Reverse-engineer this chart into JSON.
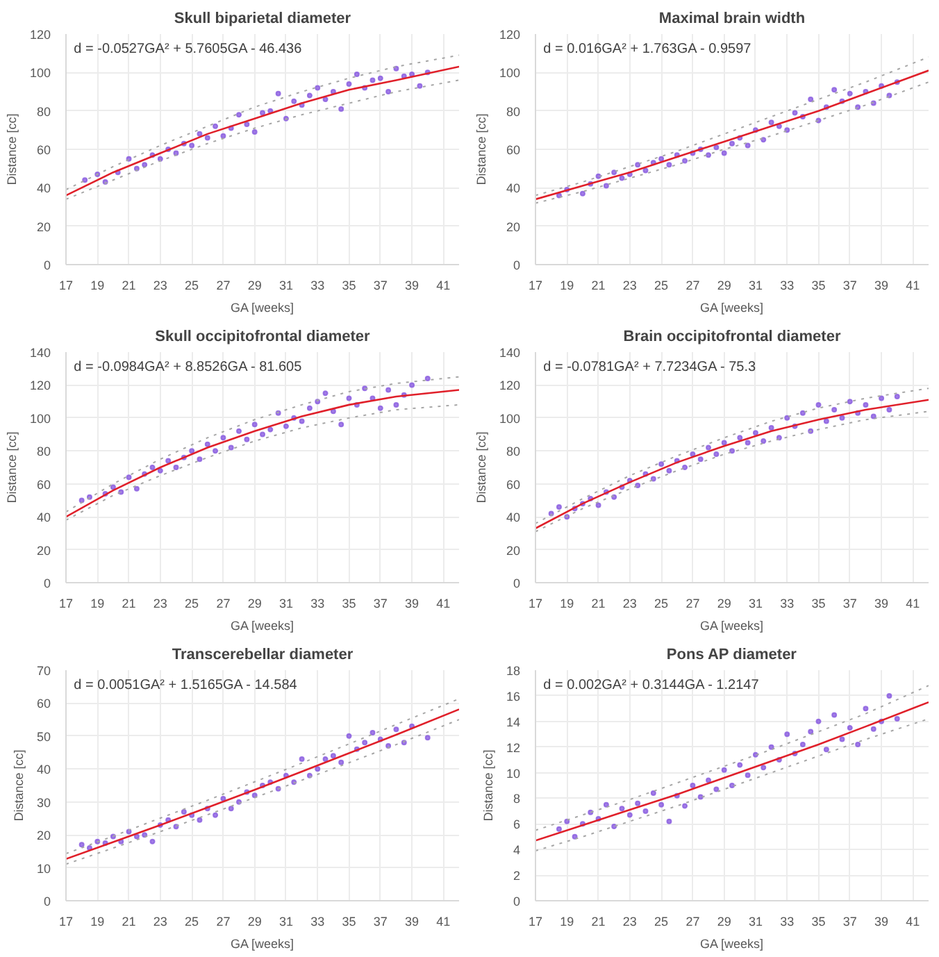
{
  "chart_data": [
    {
      "type": "scatter",
      "title": "Skull biparietal diameter",
      "xlabel": "GA [weeks]",
      "ylabel": "Distance [cc]",
      "annotations": [
        "d = -0.0527GA² + 5.7605GA - 46.436"
      ],
      "xlim": [
        17,
        42
      ],
      "xticks": [
        17,
        19,
        21,
        23,
        25,
        27,
        29,
        31,
        33,
        35,
        37,
        39,
        41
      ],
      "ylim": [
        0,
        120
      ],
      "yticks": [
        0,
        20,
        40,
        60,
        80,
        100,
        120
      ],
      "grid": true,
      "series": [
        {
          "marker": "circle",
          "color": "#8a5ce0",
          "x": [
            18.2,
            19,
            19.5,
            20.3,
            21,
            21.5,
            22,
            22.5,
            23,
            23.5,
            24,
            24.5,
            25,
            25.5,
            26,
            26.5,
            27,
            27.5,
            28,
            28.5,
            29,
            29.5,
            30,
            30.5,
            31,
            31.5,
            32,
            32.5,
            33,
            33.5,
            34,
            34.5,
            35,
            35.5,
            36,
            36.5,
            37,
            37.5,
            38,
            38.5,
            39,
            39.5,
            40
          ],
          "values": [
            44,
            47,
            43,
            48,
            55,
            50,
            52,
            57,
            55,
            60,
            58,
            63,
            62,
            68,
            66,
            72,
            67,
            71,
            78,
            73,
            69,
            79,
            80,
            89,
            76,
            85,
            83,
            88,
            92,
            86,
            90,
            81,
            94,
            99,
            92,
            96,
            97,
            90,
            102,
            98,
            99,
            93,
            100
          ]
        },
        {
          "type": "line",
          "marker": "none",
          "color": "#e0202a",
          "line_style": "solid",
          "x": [
            17,
            20,
            23,
            26,
            29,
            32,
            35,
            38,
            42
          ],
          "values": [
            36,
            48,
            58,
            68,
            76,
            84,
            91,
            96,
            103
          ]
        },
        {
          "type": "line",
          "marker": "none",
          "color": "#a6a6a6",
          "line_style": "dotted",
          "x": [
            17,
            20,
            23,
            26,
            29,
            32,
            35,
            38,
            42
          ],
          "values": [
            39,
            51,
            62,
            72,
            82,
            90,
            97,
            103,
            109
          ]
        },
        {
          "type": "line",
          "marker": "none",
          "color": "#a6a6a6",
          "line_style": "dotted",
          "x": [
            17,
            20,
            23,
            26,
            29,
            32,
            35,
            38,
            42
          ],
          "values": [
            34,
            44,
            54,
            63,
            71,
            78,
            84,
            90,
            96
          ]
        }
      ]
    },
    {
      "type": "scatter",
      "title": "Maximal brain width",
      "xlabel": "GA [weeks]",
      "ylabel": "Distance [cc]",
      "annotations": [
        "d = 0.016GA² + 1.763GA - 0.9597"
      ],
      "xlim": [
        17,
        42
      ],
      "xticks": [
        17,
        19,
        21,
        23,
        25,
        27,
        29,
        31,
        33,
        35,
        37,
        39,
        41
      ],
      "ylim": [
        0,
        120
      ],
      "yticks": [
        0,
        20,
        40,
        60,
        80,
        100,
        120
      ],
      "grid": true,
      "series": [
        {
          "marker": "circle",
          "color": "#8a5ce0",
          "x": [
            18.5,
            19,
            20,
            20.5,
            21,
            21.5,
            22,
            22.5,
            23,
            23.5,
            24,
            24.5,
            25,
            25.5,
            26,
            26.5,
            27,
            27.5,
            28,
            28.5,
            29,
            29.5,
            30,
            30.5,
            31,
            31.5,
            32,
            32.5,
            33,
            33.5,
            34,
            34.5,
            35,
            35.5,
            36,
            36.5,
            37,
            37.5,
            38,
            38.5,
            39,
            39.5,
            40
          ],
          "values": [
            36,
            39,
            37,
            42,
            46,
            41,
            48,
            45,
            47,
            52,
            49,
            53,
            55,
            52,
            57,
            54,
            58,
            60,
            57,
            61,
            58,
            63,
            66,
            62,
            70,
            65,
            74,
            72,
            70,
            79,
            77,
            86,
            75,
            82,
            91,
            85,
            89,
            82,
            90,
            84,
            93,
            88,
            95
          ]
        },
        {
          "type": "line",
          "marker": "none",
          "color": "#e0202a",
          "line_style": "solid",
          "x": [
            17,
            20,
            23,
            26,
            29,
            32,
            35,
            38,
            42
          ],
          "values": [
            34,
            41,
            48,
            56,
            64,
            72,
            80,
            89,
            101
          ]
        },
        {
          "type": "line",
          "marker": "none",
          "color": "#a6a6a6",
          "line_style": "dotted",
          "x": [
            17,
            20,
            23,
            26,
            29,
            32,
            35,
            38,
            42
          ],
          "values": [
            36,
            43,
            51,
            59,
            68,
            77,
            86,
            95,
            108
          ]
        },
        {
          "type": "line",
          "marker": "none",
          "color": "#a6a6a6",
          "line_style": "dotted",
          "x": [
            17,
            20,
            23,
            26,
            29,
            32,
            35,
            38,
            42
          ],
          "values": [
            32,
            38,
            45,
            52,
            60,
            67,
            75,
            83,
            95
          ]
        }
      ]
    },
    {
      "type": "scatter",
      "title": "Skull occipitofrontal diameter",
      "xlabel": "GA [weeks]",
      "ylabel": "Distance [cc]",
      "annotations": [
        "d = -0.0984GA² + 8.8526GA - 81.605"
      ],
      "xlim": [
        17,
        42
      ],
      "xticks": [
        17,
        19,
        21,
        23,
        25,
        27,
        29,
        31,
        33,
        35,
        37,
        39,
        41
      ],
      "ylim": [
        0,
        140
      ],
      "yticks": [
        0,
        20,
        40,
        60,
        80,
        100,
        120,
        140
      ],
      "grid": true,
      "series": [
        {
          "marker": "circle",
          "color": "#8a5ce0",
          "x": [
            18,
            18.5,
            19.5,
            20,
            20.5,
            21,
            21.5,
            22,
            22.5,
            23,
            23.5,
            24,
            24.5,
            25,
            25.5,
            26,
            26.5,
            27,
            27.5,
            28,
            28.5,
            29,
            29.5,
            30,
            30.5,
            31,
            31.5,
            32,
            32.5,
            33,
            33.5,
            34,
            34.5,
            35,
            35.5,
            36,
            36.5,
            37,
            37.5,
            38,
            38.5,
            39,
            40
          ],
          "values": [
            50,
            52,
            54,
            58,
            55,
            64,
            57,
            66,
            70,
            68,
            74,
            70,
            76,
            80,
            75,
            84,
            80,
            88,
            82,
            92,
            87,
            96,
            90,
            93,
            103,
            95,
            100,
            98,
            106,
            110,
            115,
            104,
            96,
            112,
            108,
            118,
            112,
            106,
            117,
            108,
            114,
            120,
            124
          ]
        },
        {
          "type": "line",
          "marker": "none",
          "color": "#e0202a",
          "line_style": "solid",
          "x": [
            17,
            20,
            23,
            26,
            29,
            32,
            35,
            38,
            42
          ],
          "values": [
            40,
            56,
            70,
            82,
            92,
            101,
            108,
            113,
            117
          ]
        },
        {
          "type": "line",
          "marker": "none",
          "color": "#a6a6a6",
          "line_style": "dotted",
          "x": [
            17,
            20,
            23,
            26,
            29,
            32,
            35,
            38,
            42
          ],
          "values": [
            43,
            60,
            75,
            88,
            99,
            108,
            116,
            121,
            125
          ]
        },
        {
          "type": "line",
          "marker": "none",
          "color": "#a6a6a6",
          "line_style": "dotted",
          "x": [
            17,
            20,
            23,
            26,
            29,
            32,
            35,
            38,
            42
          ],
          "values": [
            38,
            53,
            65,
            76,
            86,
            94,
            100,
            105,
            108
          ]
        }
      ]
    },
    {
      "type": "scatter",
      "title": "Brain occipitofrontal diameter",
      "xlabel": "GA [weeks]",
      "ylabel": "Distance [cc]",
      "annotations": [
        "d = -0.0781GA² + 7.7234GA - 75.3"
      ],
      "xlim": [
        17,
        42
      ],
      "xticks": [
        17,
        19,
        21,
        23,
        25,
        27,
        29,
        31,
        33,
        35,
        37,
        39,
        41
      ],
      "ylim": [
        0,
        140
      ],
      "yticks": [
        0,
        20,
        40,
        60,
        80,
        100,
        120,
        140
      ],
      "grid": true,
      "series": [
        {
          "marker": "circle",
          "color": "#8a5ce0",
          "x": [
            18,
            18.5,
            19,
            19.5,
            20,
            20.5,
            21,
            21.5,
            22,
            22.5,
            23,
            23.5,
            24,
            24.5,
            25,
            25.5,
            26,
            26.5,
            27,
            27.5,
            28,
            28.5,
            29,
            29.5,
            30,
            30.5,
            31,
            31.5,
            32,
            32.5,
            33,
            33.5,
            34,
            34.5,
            35,
            35.5,
            36,
            36.5,
            37,
            37.5,
            38,
            38.5,
            39,
            39.5,
            40
          ],
          "values": [
            42,
            46,
            40,
            45,
            48,
            51,
            47,
            55,
            52,
            58,
            62,
            59,
            66,
            63,
            72,
            68,
            74,
            70,
            78,
            75,
            82,
            78,
            85,
            80,
            88,
            85,
            91,
            86,
            94,
            88,
            100,
            95,
            103,
            92,
            108,
            98,
            105,
            100,
            110,
            103,
            108,
            101,
            112,
            105,
            113
          ]
        },
        {
          "type": "line",
          "marker": "none",
          "color": "#e0202a",
          "line_style": "solid",
          "x": [
            17,
            20,
            23,
            26,
            29,
            32,
            35,
            38,
            42
          ],
          "values": [
            33,
            48,
            61,
            73,
            83,
            92,
            99,
            105,
            111
          ]
        },
        {
          "type": "line",
          "marker": "none",
          "color": "#a6a6a6",
          "line_style": "dotted",
          "x": [
            17,
            20,
            23,
            26,
            29,
            32,
            35,
            38,
            42
          ],
          "values": [
            36,
            51,
            65,
            77,
            88,
            98,
            106,
            112,
            118
          ]
        },
        {
          "type": "line",
          "marker": "none",
          "color": "#a6a6a6",
          "line_style": "dotted",
          "x": [
            17,
            20,
            23,
            26,
            29,
            32,
            35,
            38,
            42
          ],
          "values": [
            31,
            45,
            57,
            68,
            78,
            86,
            93,
            99,
            104
          ]
        }
      ]
    },
    {
      "type": "scatter",
      "title": "Transcerebellar diameter",
      "xlabel": "GA [weeks]",
      "ylabel": "Distance [cc]",
      "annotations": [
        "d = 0.0051GA² + 1.5165GA - 14.584"
      ],
      "xlim": [
        17,
        42
      ],
      "xticks": [
        17,
        19,
        21,
        23,
        25,
        27,
        29,
        31,
        33,
        35,
        37,
        39,
        41
      ],
      "ylim": [
        0,
        70
      ],
      "yticks": [
        0,
        10,
        20,
        30,
        40,
        50,
        60,
        70
      ],
      "grid": true,
      "series": [
        {
          "marker": "circle",
          "color": "#8a5ce0",
          "x": [
            18,
            18.5,
            19,
            19.5,
            20,
            20.5,
            21,
            21.5,
            22,
            22.5,
            23,
            23.5,
            24,
            24.5,
            25,
            25.5,
            26,
            26.5,
            27,
            27.5,
            28,
            28.5,
            29,
            29.5,
            30,
            30.5,
            31,
            31.5,
            32,
            32.5,
            33,
            33.5,
            34,
            34.5,
            35,
            35.5,
            36,
            36.5,
            37,
            37.5,
            38,
            38.5,
            39,
            40
          ],
          "values": [
            17,
            16,
            18,
            17.5,
            19.5,
            18,
            21,
            19.5,
            20,
            18,
            23,
            24.5,
            22.5,
            27,
            26,
            24.5,
            28,
            26,
            31,
            28,
            30,
            33,
            32,
            35,
            36,
            34,
            38,
            36,
            43,
            38,
            40,
            43,
            44,
            42,
            50,
            46,
            48,
            51,
            49,
            47,
            52,
            48,
            53,
            49.5
          ]
        },
        {
          "type": "line",
          "marker": "none",
          "color": "#e0202a",
          "line_style": "solid",
          "x": [
            17,
            20,
            23,
            26,
            29,
            32,
            35,
            38,
            42
          ],
          "values": [
            12.7,
            17.8,
            23,
            28.3,
            33.7,
            39.2,
            44.8,
            50.4,
            58.1
          ]
        },
        {
          "type": "line",
          "marker": "none",
          "color": "#a6a6a6",
          "line_style": "dotted",
          "x": [
            17,
            20,
            23,
            26,
            29,
            32,
            35,
            38,
            42
          ],
          "values": [
            14.3,
            19.6,
            25.1,
            30.5,
            36.1,
            41.8,
            47.6,
            53.5,
            61.3
          ]
        },
        {
          "type": "line",
          "marker": "none",
          "color": "#a6a6a6",
          "line_style": "dotted",
          "x": [
            17,
            20,
            23,
            26,
            29,
            32,
            35,
            38,
            42
          ],
          "values": [
            11.1,
            16,
            21,
            26.1,
            31.3,
            36.6,
            41.9,
            47.4,
            55
          ]
        }
      ]
    },
    {
      "type": "scatter",
      "title": "Pons AP diameter",
      "xlabel": "GA [weeks]",
      "ylabel": "Distance [cc]",
      "annotations": [
        "d = 0.002GA² + 0.3144GA - 1.2147"
      ],
      "xlim": [
        17,
        42
      ],
      "xticks": [
        17,
        19,
        21,
        23,
        25,
        27,
        29,
        31,
        33,
        35,
        37,
        39,
        41
      ],
      "ylim": [
        0,
        18
      ],
      "yticks": [
        0,
        2,
        4,
        6,
        8,
        10,
        12,
        14,
        16,
        18
      ],
      "grid": true,
      "series": [
        {
          "marker": "circle",
          "color": "#8a5ce0",
          "x": [
            18.5,
            19,
            19.5,
            20,
            20.5,
            21,
            21.5,
            22,
            22.5,
            23,
            23.5,
            24,
            24.5,
            25,
            25.5,
            26,
            26.5,
            27,
            27.5,
            28,
            28.5,
            29,
            29.5,
            30,
            30.5,
            31,
            31.5,
            32,
            32.5,
            33,
            33.5,
            34,
            34.5,
            35,
            35.5,
            36,
            36.5,
            37,
            37.5,
            38,
            38.5,
            39,
            39.5,
            40
          ],
          "values": [
            5.6,
            6.2,
            5.0,
            6.0,
            6.9,
            6.4,
            7.5,
            5.8,
            7.2,
            6.7,
            7.6,
            7.0,
            8.4,
            7.5,
            6.2,
            8.2,
            7.4,
            9.0,
            8.1,
            9.4,
            8.7,
            10.2,
            9.0,
            10.6,
            9.8,
            11.4,
            10.4,
            12.0,
            11.0,
            13.0,
            11.5,
            12.2,
            13.2,
            14.0,
            11.8,
            14.5,
            12.6,
            13.5,
            12.2,
            15.0,
            13.4,
            14.0,
            16.0,
            14.2
          ]
        },
        {
          "type": "line",
          "marker": "none",
          "color": "#e0202a",
          "line_style": "solid",
          "x": [
            17,
            20,
            23,
            26,
            29,
            32,
            35,
            38,
            42
          ],
          "values": [
            4.7,
            5.9,
            7.1,
            8.3,
            9.6,
            10.9,
            12.2,
            13.6,
            15.5
          ]
        },
        {
          "type": "line",
          "marker": "none",
          "color": "#a6a6a6",
          "line_style": "dotted",
          "x": [
            17,
            20,
            23,
            26,
            29,
            32,
            35,
            38,
            42
          ],
          "values": [
            5.5,
            6.7,
            7.9,
            9.2,
            10.5,
            11.8,
            13.2,
            14.6,
            16.8
          ]
        },
        {
          "type": "line",
          "marker": "none",
          "color": "#a6a6a6",
          "line_style": "dotted",
          "x": [
            17,
            20,
            23,
            26,
            29,
            32,
            35,
            38,
            42
          ],
          "values": [
            3.9,
            5.0,
            6.2,
            7.4,
            8.7,
            10.0,
            11.3,
            12.6,
            14.2
          ]
        }
      ]
    }
  ]
}
